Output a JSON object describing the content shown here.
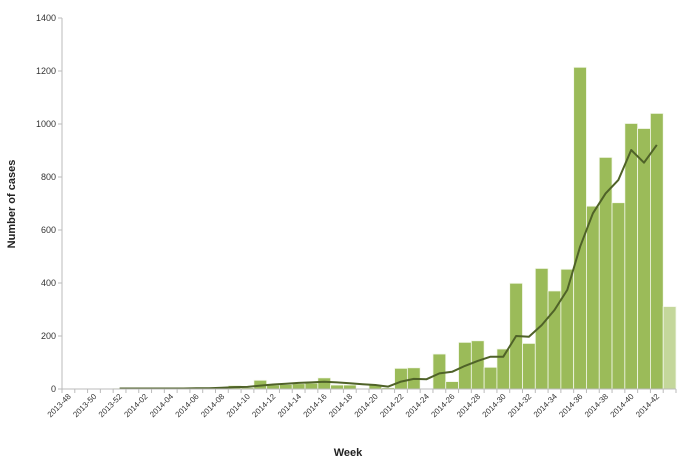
{
  "chart_data": {
    "type": "bar",
    "title": "",
    "xlabel": "Week",
    "ylabel": "Number of cases",
    "ylim": [
      0,
      1400
    ],
    "yticks": [
      0,
      200,
      400,
      600,
      800,
      1000,
      1200,
      1400
    ],
    "grid": false,
    "categories": [
      "2013-48",
      "2013-49",
      "2013-50",
      "2013-51",
      "2013-52",
      "2014-01",
      "2014-02",
      "2014-03",
      "2014-04",
      "2014-05",
      "2014-06",
      "2014-07",
      "2014-08",
      "2014-09",
      "2014-10",
      "2014-11",
      "2014-12",
      "2014-13",
      "2014-14",
      "2014-15",
      "2014-16",
      "2014-17",
      "2014-18",
      "2014-19",
      "2014-20",
      "2014-21",
      "2014-22",
      "2014-23",
      "2014-24",
      "2014-25",
      "2014-26",
      "2014-27",
      "2014-28",
      "2014-29",
      "2014-30",
      "2014-31",
      "2014-32",
      "2014-33",
      "2014-34",
      "2014-35",
      "2014-36",
      "2014-37",
      "2014-38",
      "2014-39",
      "2014-40",
      "2014-41",
      "2014-42",
      "2014-43"
    ],
    "xticklabels": [
      "2013-48",
      "2013-50",
      "2013-52",
      "2014-02",
      "2014-04",
      "2014-06",
      "2014-08",
      "2014-10",
      "2014-12",
      "2014-14",
      "2014-16",
      "2014-18",
      "2014-20",
      "2014-22",
      "2014-24",
      "2014-26",
      "2014-28",
      "2014-30",
      "2014-32",
      "2014-34",
      "2014-36",
      "2014-38",
      "2014-40",
      "2014-42"
    ],
    "series": [
      {
        "name": "Weekly cases",
        "type": "bar",
        "color": "#9bbb59",
        "incomplete_color": "#c4d79b",
        "incomplete_last": true,
        "values": [
          0,
          0,
          0,
          0,
          2,
          2,
          2,
          2,
          2,
          2,
          3,
          3,
          3,
          13,
          5,
          33,
          15,
          17,
          20,
          22,
          42,
          15,
          15,
          0,
          15,
          5,
          78,
          80,
          0,
          132,
          28,
          176,
          182,
          82,
          151,
          399,
          172,
          455,
          370,
          452,
          1214,
          690,
          874,
          703,
          1002,
          983,
          1040,
          311
        ]
      },
      {
        "name": "Moving average",
        "type": "line",
        "color": "#4f6228",
        "values": [
          null,
          null,
          null,
          null,
          2,
          2,
          2,
          2,
          2,
          2,
          3,
          3,
          5,
          7,
          8,
          13,
          17,
          20,
          23,
          25,
          27,
          25,
          22,
          18,
          15,
          9,
          28,
          38,
          37,
          59,
          65,
          87,
          106,
          122,
          122,
          200,
          197,
          241,
          298,
          374,
          537,
          663,
          738,
          789,
          902,
          854,
          921,
          null
        ]
      }
    ]
  }
}
